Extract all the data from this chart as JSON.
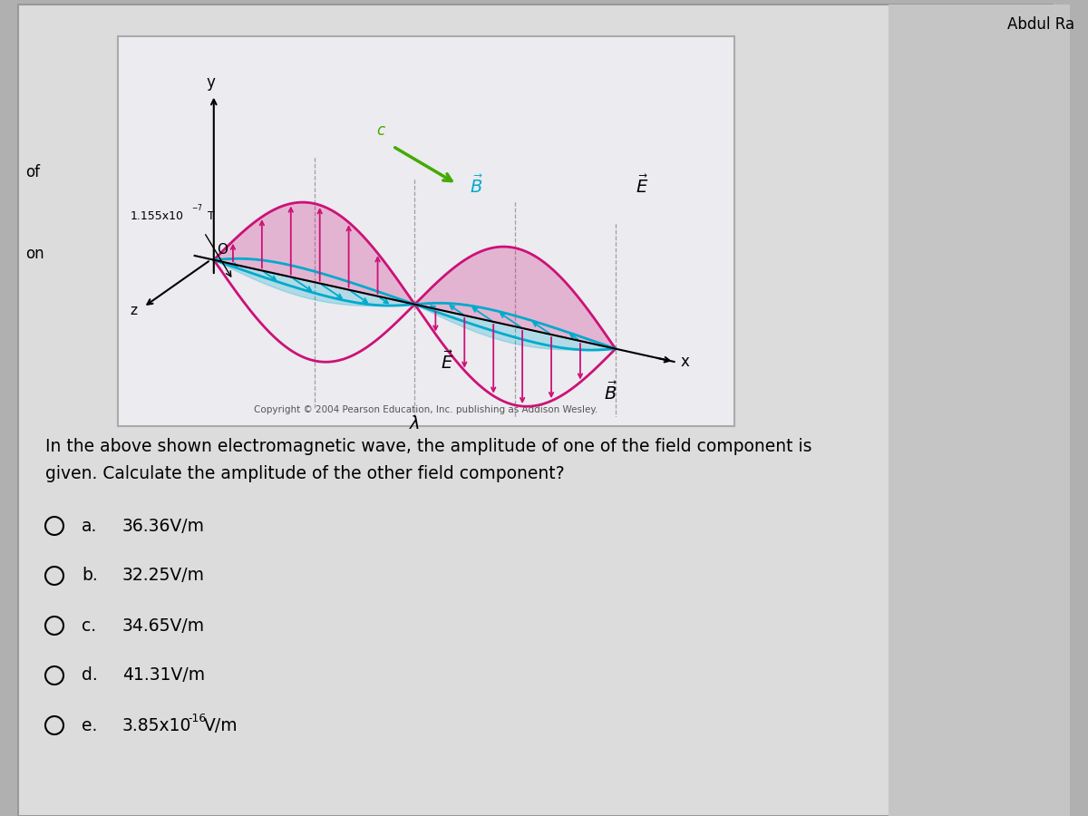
{
  "title": "Abdul Ra",
  "bg_outer": "#b0b0b0",
  "bg_panel": "#dcdcdc",
  "bg_wave_box": "#e8e8ec",
  "bg_question": "#d8d8d8",
  "E_color": "#cc1177",
  "B_color": "#00aacc",
  "c_arrow_color": "#44aa00",
  "axis_color": "#222222",
  "question_text1": "In the above shown electromagnetic wave, the amplitude of one of the field component is",
  "question_text2": "given. Calculate the amplitude of the other field component?",
  "copyright": "Copyright © 2004 Pearson Education, Inc. publishing as Addison Wesley.",
  "options": [
    {
      "key": "a.",
      "text": "36.36V/m"
    },
    {
      "key": "b.",
      "text": "32.25V/m"
    },
    {
      "key": "c.",
      "text": "34.65V/m"
    },
    {
      "key": "d.",
      "text": "41.31V/m"
    },
    {
      "key": "e.",
      "text": "3.85x10",
      "exp": "-16",
      "unit": "V/m"
    }
  ]
}
